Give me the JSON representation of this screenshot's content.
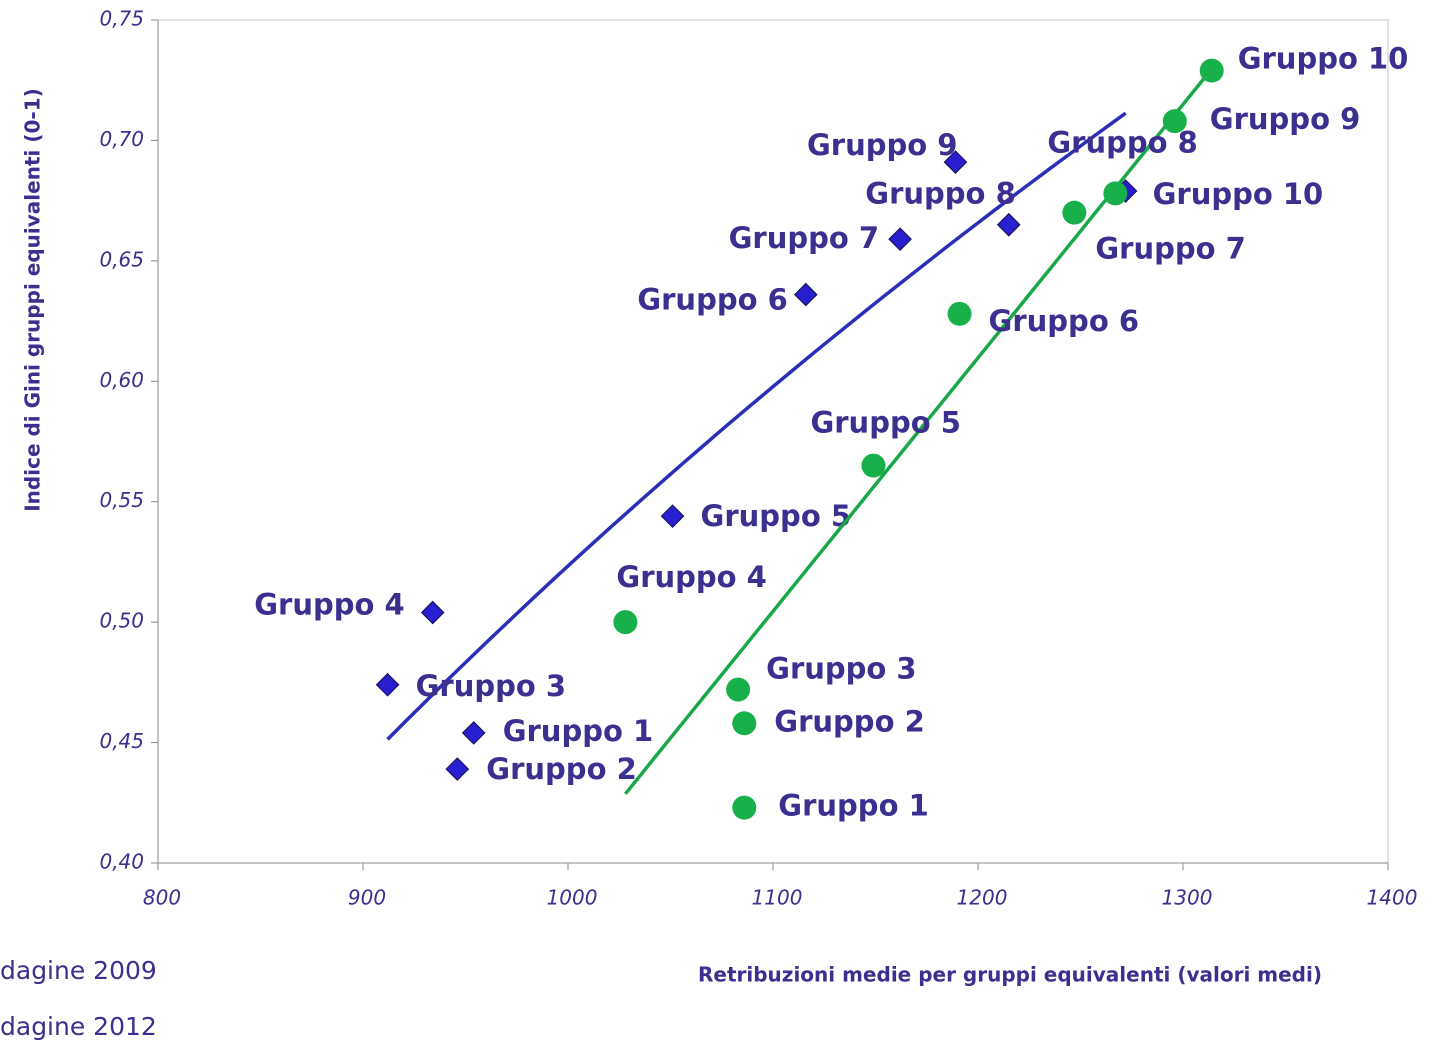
{
  "chart_data": {
    "type": "scatter",
    "x_label": "Retribuzioni medie per gruppi equivalenti (valori medi)",
    "y_label": "Indice di Gini gruppi equivalenti (0-1)",
    "xlim": [
      800,
      1400
    ],
    "xticks": [
      800,
      900,
      1000,
      1100,
      1200,
      1300,
      1400
    ],
    "ylim": [
      0.4,
      0.75
    ],
    "yticks": [
      {
        "value": 0.4,
        "label": "0,40"
      },
      {
        "value": 0.45,
        "label": "0,45"
      },
      {
        "value": 0.5,
        "label": "0,50"
      },
      {
        "value": 0.55,
        "label": "0,55"
      },
      {
        "value": 0.6,
        "label": "0,60"
      },
      {
        "value": 0.65,
        "label": "0,65"
      },
      {
        "value": 0.7,
        "label": "0,70"
      },
      {
        "value": 0.75,
        "label": "0,75"
      }
    ],
    "series": [
      {
        "name": "dagine 2009",
        "color": "#2a1fd0",
        "line_color": "#2b2fb8",
        "marker": "diamond",
        "trendline": "log",
        "labels": [
          "Gruppo 1",
          "Gruppo 2",
          "Gruppo 3",
          "Gruppo 4",
          "Gruppo 5",
          "Gruppo 6",
          "Gruppo 7",
          "Gruppo 8",
          "Gruppo 9",
          "Gruppo 10"
        ],
        "x": [
          954,
          946,
          912,
          934,
          1051,
          1116,
          1162,
          1215,
          1189,
          1272
        ],
        "values": [
          0.454,
          0.439,
          0.474,
          0.504,
          0.544,
          0.636,
          0.659,
          0.665,
          0.691,
          0.679
        ]
      },
      {
        "name": "dagine 2012",
        "color": "#17b04a",
        "line_color": "#18a848",
        "marker": "circle",
        "trendline": "linear",
        "labels": [
          "Gruppo 1",
          "Gruppo 2",
          "Gruppo 3",
          "Gruppo 4",
          "Gruppo 5",
          "Gruppo 6",
          "Gruppo 7",
          "Gruppo 8",
          "Gruppo 9",
          "Gruppo 10"
        ],
        "x": [
          1086,
          1086,
          1083,
          1028,
          1149,
          1191,
          1247,
          1267,
          1296,
          1314
        ],
        "values": [
          0.423,
          0.458,
          0.472,
          0.5,
          0.565,
          0.628,
          0.67,
          0.678,
          0.708,
          0.729
        ]
      }
    ]
  }
}
